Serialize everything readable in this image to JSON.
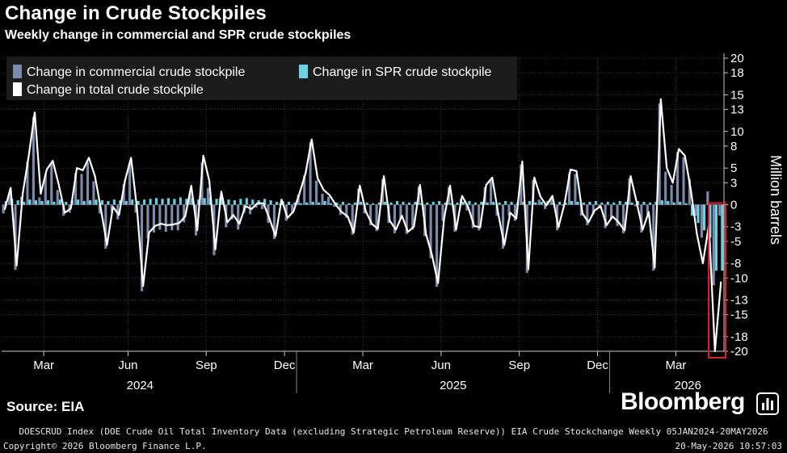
{
  "header": {
    "title": "Change in Crude Stockpiles",
    "subtitle": "Weekly change in commercial and SPR crude stockpiles"
  },
  "footer": {
    "source": "Source: EIA",
    "brand": "Bloomberg",
    "footnote": "DOESCRUD Index (DOE Crude Oil Total Inventory Data (excluding Strategic Petroleum Reserve)) EIA Crude Stockchange Weekly 05JAN2024-20MAY2026",
    "copyright": "Copyright© 2026 Bloomberg Finance L.P.",
    "timestamp": "20-May-2026 10:57:03"
  },
  "colors": {
    "background": "#000000",
    "commercial": "#7b8bad",
    "spr": "#67d3e6",
    "total": "#ffffff",
    "grid": "#3c3c3c",
    "highlight_box": "#e0202a"
  },
  "icons": {
    "brand_icon": "bar-chart-icon"
  },
  "chart_data": {
    "type": "bar",
    "title": "Change in Crude Stockpiles",
    "subtitle": "Weekly change in commercial and SPR crude stockpiles",
    "ylabel": "Million barrels",
    "ylim": [
      -20,
      20
    ],
    "yticks": [
      20,
      18,
      15,
      13,
      10,
      8,
      5,
      3,
      0,
      -3,
      -5,
      -8,
      -10,
      -13,
      -15,
      -18,
      -20
    ],
    "y_axis_position": "right",
    "grid": true,
    "legend_position": "top-left",
    "x_month_ticks": [
      {
        "label": "Mar",
        "week": 7
      },
      {
        "label": "Jun",
        "week": 21
      },
      {
        "label": "Sep",
        "week": 34
      },
      {
        "label": "Dec",
        "week": 47
      },
      {
        "label": "Mar",
        "week": 60
      },
      {
        "label": "Jun",
        "week": 73
      },
      {
        "label": "Sep",
        "week": 86
      },
      {
        "label": "Dec",
        "week": 99
      },
      {
        "label": "Mar",
        "week": 112
      }
    ],
    "x_year_labels": [
      {
        "label": "2024",
        "center_week": 23
      },
      {
        "label": "2025",
        "center_week": 75
      },
      {
        "label": "2026",
        "center_week": 114
      }
    ],
    "x_year_dividers": [
      49,
      101
    ],
    "x_range": [
      0,
      120
    ],
    "highlight_weeks": [
      119,
      120
    ],
    "series": [
      {
        "name": "Change in commercial crude stockpile",
        "style": "bar",
        "values": [
          -1.2,
          1.5,
          -8.9,
          1.1,
          5.9,
          12.0,
          1.0,
          4.2,
          5.6,
          2.0,
          -1.5,
          -1.1,
          4.3,
          4.2,
          5.8,
          3.2,
          -1.2,
          -6.0,
          -1.0,
          -2.0,
          2.8,
          5.7,
          -1.1,
          -11.8,
          -4.6,
          -3.8,
          -3.4,
          -3.7,
          -3.5,
          -3.5,
          -2.4,
          1.7,
          -4.2,
          5.8,
          2.3,
          -6.9,
          0.9,
          -3.1,
          -2.0,
          -3.4,
          -1.1,
          -1.3,
          -0.4,
          -0.6,
          -2.5,
          -4.7,
          0.2,
          -2.2,
          -1.2,
          1.4,
          4.0,
          8.5,
          3.3,
          1.5,
          1.1,
          -0.3,
          -1.4,
          -1.8,
          -4.1,
          2.2,
          -1.2,
          -2.8,
          -3.6,
          3.5,
          -2.5,
          -3.9,
          -1.9,
          -4.0,
          -3.4,
          2.5,
          -4.3,
          -7.3,
          -11.2,
          -2.2,
          2.4,
          -3.7,
          0.8,
          -0.8,
          -3.2,
          -3.5,
          2.4,
          3.3,
          -1.5,
          -6.0,
          -1.5,
          -2.2,
          5.5,
          -9.3,
          3.4,
          0.7,
          -0.6,
          0.9,
          -3.5,
          -0.2,
          4.3,
          4.2,
          -1.5,
          -2.8,
          -1.3,
          -0.5,
          -3.2,
          -1.9,
          -2.9,
          -3.9,
          3.6,
          -0.2,
          -3.8,
          -1.3,
          -9.0,
          13.8,
          4.5,
          2.7,
          7.2,
          6.5,
          3.5,
          -1.5,
          -4.5,
          1.8,
          -11.0,
          -1.5
        ]
      },
      {
        "name": "Change in SPR crude stockpile",
        "style": "bar",
        "values": [
          0.5,
          0.8,
          0.6,
          0.4,
          0.7,
          0.6,
          0.5,
          0.6,
          0.4,
          0.7,
          0.4,
          0.6,
          0.7,
          0.5,
          0.6,
          0.7,
          0.6,
          0.5,
          0.7,
          0.6,
          0.5,
          0.7,
          0.5,
          0.7,
          0.8,
          0.9,
          0.8,
          0.9,
          0.8,
          1.0,
          0.8,
          0.9,
          0.7,
          0.9,
          1.0,
          0.8,
          0.9,
          0.7,
          0.6,
          0.8,
          0.9,
          0.7,
          0.6,
          0.8,
          0.6,
          0.4,
          0.5,
          0.4,
          0.3,
          0.2,
          0.3,
          0.4,
          0.3,
          0.5,
          0.2,
          0.3,
          0.4,
          0.2,
          0.3,
          0.4,
          0.3,
          0.2,
          0.3,
          0.4,
          0.3,
          0.5,
          0.4,
          0.3,
          0.4,
          0.2,
          0.3,
          0.4,
          0.5,
          0.3,
          0.2,
          0.3,
          0.4,
          0.5,
          0.3,
          0.4,
          0.3,
          0.4,
          0.3,
          0.5,
          0.4,
          0.3,
          0.4,
          0.5,
          0.3,
          0.4,
          0.5,
          0.3,
          0.4,
          0.3,
          0.5,
          0.4,
          0.3,
          0.4,
          0.5,
          0.3,
          0.4,
          0.3,
          0.5,
          0.4,
          0.3,
          0.5,
          0.4,
          0.3,
          0.4,
          0.6,
          0.5,
          0.3,
          0.4,
          0.2,
          -1.5,
          -2.5,
          -3.5,
          -4.5,
          -9.0,
          -9.0
        ]
      },
      {
        "name": "Change in total crude stockpile",
        "style": "line",
        "values": [
          -0.7,
          2.3,
          -8.3,
          1.5,
          6.6,
          12.6,
          1.5,
          4.8,
          6.0,
          2.7,
          -1.1,
          -0.5,
          5.0,
          4.7,
          6.4,
          3.9,
          -0.6,
          -5.5,
          -0.3,
          -1.4,
          3.3,
          6.4,
          -0.6,
          -11.1,
          -3.8,
          -2.9,
          -2.6,
          -2.8,
          -2.7,
          -2.5,
          -1.6,
          2.6,
          -3.5,
          6.7,
          3.3,
          -6.1,
          1.8,
          -2.4,
          -1.4,
          -2.6,
          -0.2,
          -0.6,
          0.2,
          0.2,
          -1.9,
          -4.3,
          0.7,
          -1.8,
          -0.9,
          1.6,
          4.3,
          8.9,
          3.6,
          2.0,
          1.3,
          0.0,
          -1.0,
          -1.6,
          -3.8,
          2.6,
          -0.9,
          -2.6,
          -3.3,
          3.9,
          -2.2,
          -3.4,
          -1.5,
          -3.7,
          -3.0,
          2.7,
          -4.0,
          -6.9,
          -10.7,
          -1.9,
          2.6,
          -3.4,
          1.2,
          -0.3,
          -2.9,
          -3.1,
          2.7,
          3.7,
          -1.2,
          -5.5,
          -1.1,
          -1.9,
          5.9,
          -8.8,
          3.7,
          1.1,
          -0.1,
          1.2,
          -3.1,
          0.1,
          4.8,
          4.6,
          -1.2,
          -2.4,
          -0.8,
          -0.2,
          -2.8,
          -1.6,
          -2.4,
          -3.5,
          3.9,
          0.3,
          -3.4,
          -1.0,
          -8.6,
          14.4,
          5.0,
          3.0,
          7.6,
          6.7,
          2.0,
          -4.0,
          -8.0,
          -2.7,
          -20.0,
          -10.5
        ]
      }
    ]
  }
}
